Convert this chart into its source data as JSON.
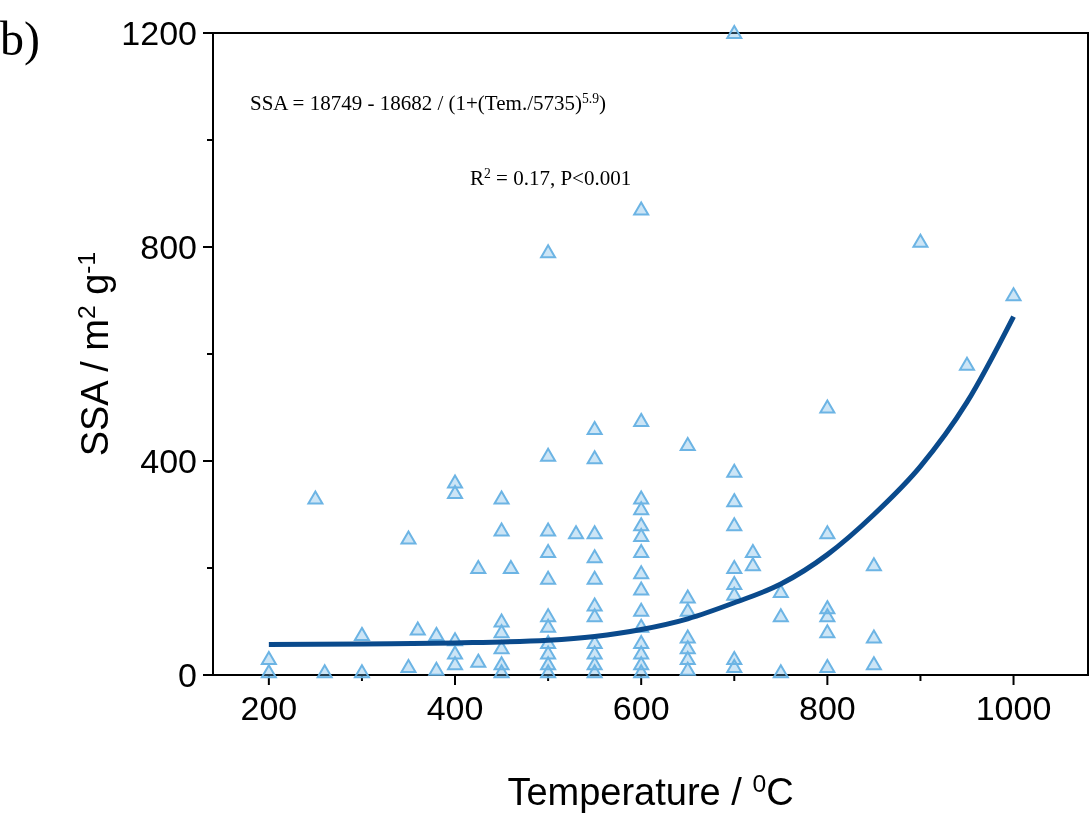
{
  "chart_data": {
    "type": "scatter",
    "xlabel": "Temperature / $^{0}$C",
    "ylabel": "SSA / m$^{2}$ g$^{-1}$",
    "annotations": [
      "b)",
      "SSA =  18749  - 18682  / (1+(Tem./5735)$^{5.9}$)",
      "R$^{2}$ = 0.17,  P<0.001"
    ],
    "xlim": [
      140,
      1080
    ],
    "ylim": [
      0,
      1200
    ],
    "xticks": [
      200,
      {
        "value": 300,
        "label": null
      },
      400,
      {
        "value": 500,
        "label": null
      },
      600,
      {
        "value": 700,
        "label": null
      },
      800,
      {
        "value": 900,
        "label": null
      },
      1000
    ],
    "yticks": [
      0,
      {
        "value": 200,
        "label": null
      },
      400,
      {
        "value": 600,
        "label": null
      },
      800,
      {
        "value": 1000,
        "label": null
      },
      1200
    ],
    "grid": false,
    "series": [
      {
        "color": "#6cb4e4",
        "marker": "triangle",
        "x": [
          200,
          200,
          250,
          260,
          300,
          300,
          350,
          350,
          360,
          380,
          380,
          400,
          400,
          400,
          400,
          400,
          425,
          425,
          450,
          450,
          450,
          450,
          450,
          450,
          450,
          460,
          500,
          500,
          500,
          500,
          500,
          500,
          500,
          500,
          500,
          500,
          500,
          530,
          550,
          550,
          550,
          550,
          550,
          550,
          550,
          550,
          550,
          550,
          550,
          600,
          600,
          600,
          600,
          600,
          600,
          600,
          600,
          600,
          600,
          600,
          600,
          600,
          600,
          600,
          650,
          650,
          650,
          650,
          650,
          650,
          650,
          700,
          700,
          700,
          700,
          700,
          700,
          700,
          700,
          700,
          720,
          720,
          750,
          750,
          750,
          800,
          800,
          800,
          800,
          800,
          800,
          850,
          850,
          850,
          900,
          950,
          1000
        ],
        "values": [
          30,
          5,
          330,
          5,
          75,
          5,
          255,
          15,
          85,
          75,
          10,
          360,
          340,
          65,
          40,
          20,
          200,
          25,
          330,
          270,
          100,
          80,
          50,
          20,
          5,
          200,
          790,
          410,
          270,
          230,
          180,
          110,
          90,
          60,
          40,
          20,
          5,
          265,
          460,
          405,
          265,
          220,
          180,
          130,
          110,
          60,
          40,
          20,
          5,
          870,
          475,
          330,
          310,
          280,
          260,
          230,
          190,
          160,
          120,
          90,
          60,
          40,
          20,
          5,
          430,
          145,
          120,
          70,
          50,
          30,
          10,
          1200,
          380,
          325,
          280,
          200,
          170,
          150,
          30,
          15,
          230,
          205,
          155,
          110,
          5,
          500,
          265,
          125,
          110,
          80,
          15,
          205,
          70,
          20,
          810,
          580,
          710
        ]
      },
      {
        "type": "line",
        "marker": "none",
        "color": "#0a4a8c",
        "x": [
          200,
          300,
          400,
          500,
          550,
          600,
          650,
          700,
          750,
          800,
          850,
          900,
          950,
          1000
        ],
        "values": [
          57,
          58,
          60,
          65,
          72,
          85,
          105,
          135,
          170,
          225,
          300,
          390,
          510,
          670
        ]
      }
    ]
  }
}
